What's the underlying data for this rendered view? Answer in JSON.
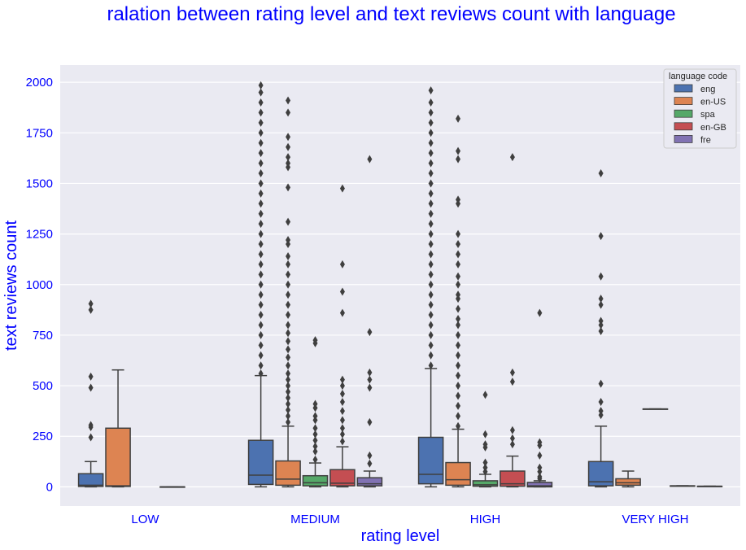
{
  "chart_data": {
    "type": "box",
    "title": "ralation between rating level and text reviews count with language",
    "xlabel": "rating level",
    "ylabel": "text reviews count",
    "categories": [
      "LOW",
      "MEDIUM",
      "HIGH",
      "VERY HIGH"
    ],
    "ylim": [
      -95,
      2085
    ],
    "yticks": [
      0,
      250,
      500,
      750,
      1000,
      1250,
      1500,
      1750,
      2000
    ],
    "grid": true,
    "legend": {
      "title": "language code",
      "position": "top-right"
    },
    "series": [
      {
        "name": "eng",
        "color": "#4c72b0",
        "boxes": [
          {
            "q1": 2,
            "median": 8,
            "q3": 65,
            "whisker_low": 0,
            "whisker_high": 125,
            "outliers": [
              245,
              295,
              305,
              490,
              545,
              875,
              905
            ]
          },
          {
            "q1": 12,
            "median": 58,
            "q3": 230,
            "whisker_low": 0,
            "whisker_high": 550,
            "outliers": [
              560,
              600,
              650,
              700,
              750,
              800,
              850,
              900,
              950,
              1000,
              1050,
              1100,
              1150,
              1200,
              1250,
              1300,
              1350,
              1400,
              1450,
              1500,
              1550,
              1600,
              1650,
              1700,
              1750,
              1800,
              1850,
              1900,
              1950,
              1985
            ]
          },
          {
            "q1": 15,
            "median": 62,
            "q3": 245,
            "whisker_low": 0,
            "whisker_high": 585,
            "outliers": [
              600,
              650,
              700,
              750,
              800,
              850,
              900,
              950,
              1000,
              1050,
              1100,
              1150,
              1200,
              1250,
              1300,
              1350,
              1400,
              1450,
              1500,
              1550,
              1600,
              1650,
              1700,
              1750,
              1800,
              1850,
              1900,
              1960
            ]
          },
          {
            "q1": 5,
            "median": 25,
            "q3": 125,
            "whisker_low": 0,
            "whisker_high": 300,
            "outliers": [
              355,
              375,
              420,
              510,
              770,
              800,
              820,
              900,
              930,
              1040,
              1240,
              1550
            ]
          }
        ]
      },
      {
        "name": "en-US",
        "color": "#dd8452",
        "boxes": [
          {
            "q1": 2,
            "median": 5,
            "q3": 290,
            "whisker_low": 0,
            "whisker_high": 578,
            "outliers": []
          },
          {
            "q1": 8,
            "median": 38,
            "q3": 128,
            "whisker_low": 0,
            "whisker_high": 300,
            "outliers": [
              320,
              350,
              380,
              410,
              440,
              470,
              500,
              530,
              560,
              600,
              640,
              680,
              720,
              760,
              800,
              850,
              900,
              950,
              1000,
              1050,
              1100,
              1140,
              1200,
              1220,
              1310,
              1480,
              1580,
              1600,
              1630,
              1680,
              1730,
              1850,
              1910
            ]
          },
          {
            "q1": 8,
            "median": 35,
            "q3": 120,
            "whisker_low": 0,
            "whisker_high": 285,
            "outliers": [
              300,
              350,
              400,
              450,
              500,
              550,
              600,
              650,
              700,
              750,
              800,
              830,
              880,
              930,
              950,
              1000,
              1040,
              1100,
              1150,
              1200,
              1250,
              1400,
              1420,
              1620,
              1660,
              1820
            ]
          },
          {
            "q1": 8,
            "median": 20,
            "q3": 40,
            "whisker_low": 0,
            "whisker_high": 78,
            "outliers": []
          }
        ]
      },
      {
        "name": "spa",
        "color": "#55a868",
        "boxes": [
          null,
          {
            "q1": 5,
            "median": 20,
            "q3": 55,
            "whisker_low": 0,
            "whisker_high": 118,
            "outliers": [
              135,
              175,
              200,
              230,
              260,
              290,
              330,
              350,
              390,
              410,
              710,
              725
            ]
          },
          {
            "q1": 3,
            "median": 10,
            "q3": 30,
            "whisker_low": 0,
            "whisker_high": 62,
            "outliers": [
              75,
              95,
              120,
              195,
              210,
              260,
              455
            ]
          },
          {
            "q1": 385,
            "median": 385,
            "q3": 385,
            "whisker_low": 385,
            "whisker_high": 385,
            "outliers": []
          }
        ]
      },
      {
        "name": "en-GB",
        "color": "#c44e52",
        "boxes": [
          {
            "q1": 0,
            "median": 0,
            "q3": 0,
            "whisker_low": 0,
            "whisker_high": 0,
            "outliers": []
          },
          {
            "q1": 5,
            "median": 18,
            "q3": 85,
            "whisker_low": 0,
            "whisker_high": 198,
            "outliers": [
              225,
              260,
              290,
              330,
              375,
              420,
              460,
              500,
              530,
              860,
              965,
              1100,
              1475
            ]
          },
          {
            "q1": 3,
            "median": 15,
            "q3": 78,
            "whisker_low": 0,
            "whisker_high": 152,
            "outliers": [
              210,
              240,
              280,
              520,
              565,
              1630
            ]
          },
          {
            "q1": 5,
            "median": 5,
            "q3": 5,
            "whisker_low": 5,
            "whisker_high": 5,
            "outliers": []
          }
        ]
      },
      {
        "name": "fre",
        "color": "#8172b3",
        "boxes": [
          null,
          {
            "q1": 5,
            "median": 15,
            "q3": 45,
            "whisker_low": 0,
            "whisker_high": 78,
            "outliers": [
              115,
              155,
              320,
              490,
              530,
              565,
              765,
              1620
            ]
          },
          {
            "q1": 0,
            "median": 5,
            "q3": 22,
            "whisker_low": 0,
            "whisker_high": 30,
            "outliers": [
              40,
              50,
              75,
              95,
              155,
              205,
              220,
              860
            ]
          },
          {
            "q1": 3,
            "median": 3,
            "q3": 3,
            "whisker_low": 3,
            "whisker_high": 3,
            "outliers": []
          }
        ]
      }
    ]
  }
}
